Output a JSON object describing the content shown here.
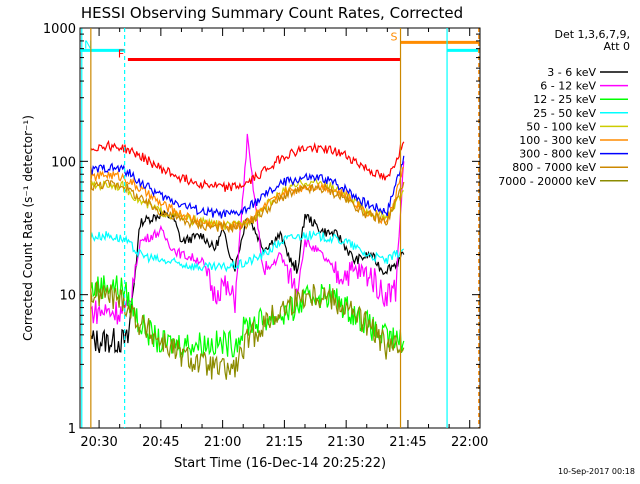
{
  "chart_data": {
    "type": "line",
    "title": "HESSI Observing Summary Count Rates, Corrected",
    "xlabel": "Start Time (16-Dec-14 20:25:22)",
    "ylabel": "Corrected Count Rate (s⁻¹ detector⁻¹)",
    "y_scale": "log",
    "xlim": [
      "20:25:22",
      "22:02:30"
    ],
    "ylim": [
      1,
      1000
    ],
    "x_ticks": [
      "20:30",
      "20:45",
      "21:00",
      "21:15",
      "21:30",
      "21:45",
      "22:00"
    ],
    "y_ticks": [
      "1",
      "10",
      "100",
      "1000"
    ],
    "grid": false,
    "legend_placement": "top-right outside",
    "legend_header": [
      "Det 1,3,6,7,9,",
      "Att 0"
    ],
    "footer_text": "10-Sep-2017 00:18",
    "x_unit": "minutes after 20:00",
    "series": [
      {
        "name": "3 - 6 keV",
        "color": "#000000",
        "x": [
          28,
          33,
          37,
          40,
          45,
          48,
          50,
          55,
          58,
          60,
          63,
          66,
          70,
          74,
          78,
          80,
          84,
          88,
          92,
          96,
          99,
          102,
          104
        ],
        "y": [
          4.5,
          4.5,
          4.5,
          35,
          40,
          38,
          25,
          28,
          22,
          30,
          16,
          40,
          22,
          28,
          14,
          40,
          30,
          28,
          18,
          20,
          15,
          17,
          20
        ]
      },
      {
        "name": "6 - 12 keV",
        "color": "#ff00ff",
        "x": [
          28,
          33,
          37,
          40,
          45,
          48,
          50,
          55,
          58,
          60,
          63,
          66,
          70,
          74,
          78,
          80,
          84,
          88,
          92,
          96,
          99,
          102,
          104
        ],
        "y": [
          7.5,
          7.5,
          7.5,
          25,
          30,
          22,
          20,
          18,
          10,
          12,
          9,
          150,
          14,
          20,
          11,
          25,
          20,
          14,
          15,
          14,
          10,
          11,
          100
        ]
      },
      {
        "name": "12 - 25 keV",
        "color": "#00ff00",
        "x": [
          28,
          32,
          36,
          40,
          45,
          50,
          55,
          60,
          63,
          66,
          70,
          74,
          78,
          82,
          86,
          90,
          94,
          98,
          102,
          104
        ],
        "y": [
          11,
          12,
          11,
          6,
          4.3,
          4.3,
          4.3,
          4.3,
          4.3,
          6,
          6.5,
          7,
          8,
          10,
          10,
          8,
          6.5,
          5,
          4.5,
          4.5
        ]
      },
      {
        "name": "25 - 50 keV",
        "color": "#00ffff",
        "x": [
          28,
          32,
          36,
          40,
          45,
          50,
          55,
          60,
          65,
          70,
          75,
          80,
          85,
          90,
          95,
          100,
          104
        ],
        "y": [
          27,
          28,
          26,
          20,
          18,
          17,
          16,
          16,
          17,
          20,
          26,
          28,
          27,
          25,
          20,
          18,
          22
        ]
      },
      {
        "name": "50 - 100 keV",
        "color": "#cccc00",
        "x": [
          28,
          32,
          36,
          40,
          45,
          50,
          55,
          60,
          63,
          66,
          70,
          75,
          80,
          85,
          90,
          95,
          100,
          104
        ],
        "y": [
          65,
          67,
          65,
          50,
          42,
          38,
          35,
          33,
          33,
          35,
          45,
          60,
          70,
          68,
          55,
          42,
          38,
          60
        ]
      },
      {
        "name": "100 - 300 keV",
        "color": "#ff8c00",
        "x": [
          28,
          32,
          36,
          40,
          45,
          50,
          55,
          60,
          63,
          66,
          70,
          75,
          80,
          85,
          90,
          95,
          100,
          104
        ],
        "y": [
          75,
          80,
          76,
          62,
          48,
          40,
          35,
          33,
          33,
          36,
          45,
          58,
          65,
          65,
          55,
          42,
          35,
          90
        ]
      },
      {
        "name": "300 - 800 keV",
        "color": "#0000ff",
        "x": [
          28,
          32,
          36,
          40,
          45,
          50,
          55,
          60,
          63,
          66,
          70,
          75,
          80,
          85,
          90,
          95,
          100,
          104
        ],
        "y": [
          85,
          90,
          87,
          70,
          55,
          48,
          42,
          40,
          40,
          44,
          55,
          70,
          75,
          74,
          62,
          48,
          42,
          110
        ]
      },
      {
        "name": "800 - 7000 keV",
        "color": "#cc8800",
        "x": [
          28,
          32,
          36,
          40,
          45,
          50,
          55,
          60,
          63,
          66,
          70,
          75,
          80,
          85,
          90,
          95,
          100,
          104
        ],
        "y": [
          65,
          68,
          66,
          52,
          42,
          36,
          33,
          32,
          32,
          34,
          42,
          55,
          62,
          62,
          52,
          40,
          35,
          70
        ]
      },
      {
        "name": "7000 - 20000 keV",
        "color": "#8b8b00",
        "x": [
          28,
          32,
          36,
          40,
          45,
          50,
          55,
          60,
          63,
          66,
          70,
          75,
          80,
          85,
          90,
          95,
          100,
          104
        ],
        "y": [
          10,
          10,
          9,
          6,
          4.5,
          3.5,
          3,
          2.7,
          2.8,
          4.5,
          6,
          8,
          10,
          10,
          8,
          6,
          4,
          4
        ]
      },
      {
        "name": "",
        "color": "#ff0000",
        "x": [
          28,
          32,
          36,
          40,
          45,
          50,
          55,
          60,
          63,
          66,
          70,
          75,
          80,
          85,
          90,
          95,
          100,
          104
        ],
        "y": [
          125,
          132,
          125,
          110,
          88,
          75,
          68,
          64,
          64,
          68,
          85,
          110,
          125,
          125,
          110,
          88,
          72,
          140
        ]
      }
    ],
    "flags": [
      {
        "label": "N",
        "color": "#00ffff",
        "x_start": 25.4,
        "x_end": 36.2,
        "y": 680
      },
      {
        "label": "F",
        "color": "#ff0000",
        "x_start": 37.0,
        "x_end": 103.2,
        "y": 580
      },
      {
        "label": "S",
        "color": "#ff8c00",
        "x_start": 103.2,
        "x_end": 122.2,
        "y": 780
      },
      {
        "label": "",
        "color": "#00ffff",
        "x_start": 114.5,
        "x_end": 122.2,
        "y": 680
      }
    ],
    "vertical_lines": [
      {
        "x": 25.8,
        "color": "#00ffff",
        "style": "solid"
      },
      {
        "x": 36.2,
        "color": "#00ffff",
        "style": "dashed"
      },
      {
        "x": 28.0,
        "color": "#cc8800",
        "style": "solid"
      },
      {
        "x": 103.2,
        "color": "#cc8800",
        "style": "solid"
      },
      {
        "x": 114.5,
        "color": "#00ffff",
        "style": "solid"
      },
      {
        "x": 122.2,
        "color": "#ff8c00",
        "style": "dashed"
      }
    ]
  }
}
